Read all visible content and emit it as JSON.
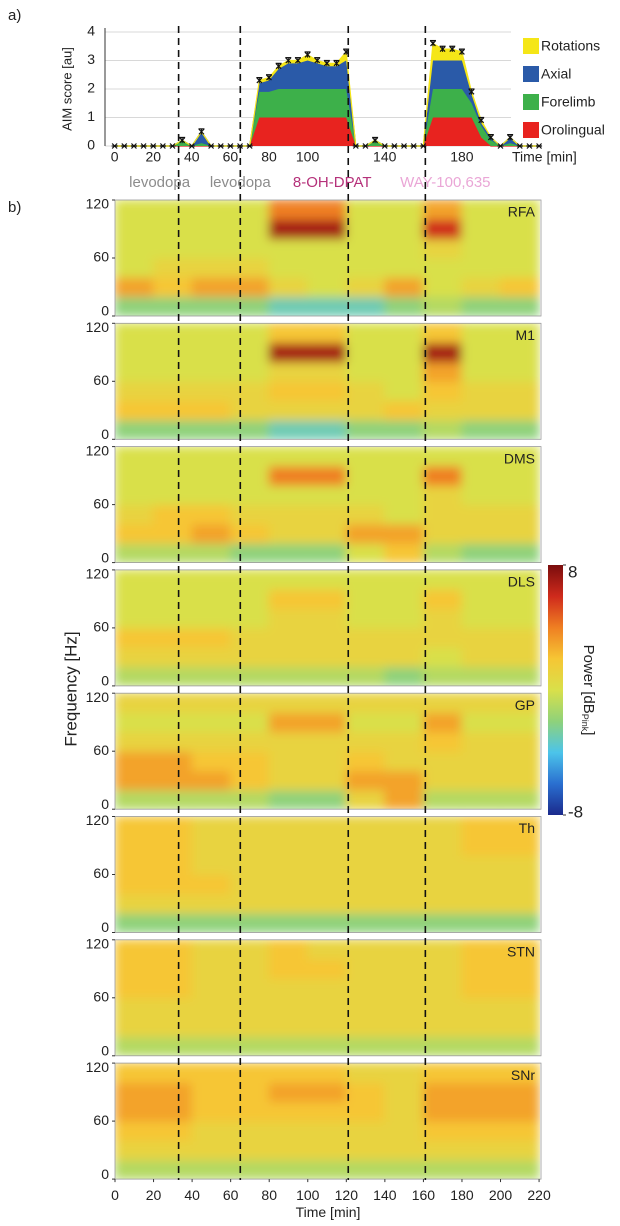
{
  "events": [
    {
      "x": 33,
      "label": "levodopa",
      "color": "#8c8c8c"
    },
    {
      "x": 65,
      "label": "levodopa",
      "color": "#8c8c8c"
    },
    {
      "x": 121,
      "label": "8-OH-DPAT",
      "color": "#b5317a"
    },
    {
      "x": 161,
      "label": "WAY-100,635",
      "color": "#eaa6d6"
    }
  ],
  "chart_data": [
    {
      "type": "area",
      "panel_label": "a)",
      "ylabel": "AIM score [au]",
      "xlabel": "Time [min]",
      "x": [
        0,
        5,
        10,
        15,
        20,
        25,
        30,
        35,
        40,
        45,
        50,
        55,
        60,
        65,
        70,
        75,
        80,
        85,
        90,
        95,
        100,
        105,
        110,
        115,
        120,
        125,
        130,
        135,
        140,
        145,
        150,
        155,
        160,
        165,
        170,
        175,
        180,
        185,
        190,
        195,
        200,
        205,
        210,
        215,
        220
      ],
      "xlim": [
        -5,
        221
      ],
      "xticks": [
        0,
        20,
        40,
        60,
        80,
        100,
        140,
        180
      ],
      "ylim": [
        0,
        4
      ],
      "yticks": [
        0,
        1,
        2,
        3,
        4
      ],
      "grid": true,
      "stacked": true,
      "legend": "upper right",
      "series": [
        {
          "name": "Orolingual",
          "color": "#e8231f",
          "values": [
            0,
            0,
            0,
            0,
            0,
            0,
            0,
            0,
            0,
            0,
            0,
            0,
            0,
            0,
            0,
            1,
            1,
            1,
            1,
            1,
            1,
            1,
            1,
            1,
            1,
            0,
            0,
            0,
            0,
            0,
            0,
            0,
            0,
            1,
            1,
            1,
            1,
            1,
            0.3,
            0,
            0,
            0,
            0,
            0,
            0
          ]
        },
        {
          "name": "Forelimb",
          "color": "#3db04a",
          "values": [
            0,
            0,
            0,
            0,
            0,
            0,
            0,
            0.2,
            0,
            0.1,
            0,
            0,
            0,
            0,
            0,
            0.9,
            0.9,
            1,
            1,
            1,
            1,
            1,
            1,
            1,
            1,
            0,
            0,
            0.2,
            0,
            0,
            0,
            0,
            0,
            1,
            1,
            1,
            1,
            0.5,
            0.4,
            0.2,
            0,
            0.1,
            0,
            0,
            0
          ]
        },
        {
          "name": "Axial",
          "color": "#2a5aa8",
          "values": [
            0,
            0,
            0,
            0,
            0,
            0,
            0,
            0,
            0,
            0.4,
            0,
            0,
            0,
            0,
            0,
            0.3,
            0.4,
            0.7,
            0.9,
            0.9,
            1,
            0.9,
            0.8,
            0.8,
            1,
            0,
            0,
            0,
            0,
            0,
            0,
            0,
            0,
            1,
            1,
            1,
            1,
            0.3,
            0.1,
            0.1,
            0,
            0.2,
            0,
            0,
            0
          ]
        },
        {
          "name": "Rotations",
          "color": "#f5e617",
          "values": [
            0,
            0,
            0,
            0,
            0,
            0,
            0,
            0,
            0,
            0,
            0,
            0,
            0,
            0,
            0,
            0.1,
            0.1,
            0.1,
            0.1,
            0.1,
            0.2,
            0.1,
            0.1,
            0.1,
            0.3,
            0,
            0,
            0,
            0,
            0,
            0,
            0,
            0,
            0.6,
            0.4,
            0.4,
            0.3,
            0.1,
            0.1,
            0,
            0,
            0,
            0,
            0,
            0
          ],
          "errors": [
            0,
            0,
            0,
            0,
            0,
            0,
            0,
            0.1,
            0,
            0.1,
            0,
            0,
            0,
            0,
            0,
            0.1,
            0.1,
            0.1,
            0.1,
            0.1,
            0.1,
            0.1,
            0.1,
            0.1,
            0.1,
            0,
            0,
            0.1,
            0,
            0,
            0,
            0,
            0,
            0.1,
            0.1,
            0.1,
            0.1,
            0.1,
            0.1,
            0.1,
            0,
            0.1,
            0,
            0,
            0
          ]
        }
      ]
    },
    {
      "type": "heatmap",
      "panel_label": "b)",
      "ylabel": "Frequency [Hz]",
      "xlabel": "Time [min]",
      "xlim": [
        0,
        221
      ],
      "xticks": [
        0,
        20,
        40,
        60,
        80,
        100,
        120,
        140,
        160,
        180,
        200,
        220
      ],
      "ylim": [
        0,
        120
      ],
      "yticks": [
        0,
        60,
        120
      ],
      "time_bins": [
        0,
        20,
        40,
        60,
        80,
        100,
        120,
        140,
        160,
        180,
        200,
        220
      ],
      "freq_bins": [
        0,
        20,
        40,
        60,
        80,
        100,
        120
      ],
      "colormap": [
        "#1b2a8c",
        "#2a6fd0",
        "#4cc4ea",
        "#8fd27a",
        "#d9e04a",
        "#f6c634",
        "#ef7f22",
        "#cf2a1c",
        "#7a0d0d"
      ],
      "clim": [
        -8,
        8
      ],
      "cticks": [
        8,
        -8
      ],
      "colorbar_label": [
        "Power [dB",
        "Pink",
        "]"
      ],
      "panels": [
        {
          "name": "RFA",
          "values": [
            [
              -2,
              -2,
              -2,
              -2,
              -3,
              -3,
              -3,
              -2,
              -1,
              -2,
              -2
            ],
            [
              3,
              2,
              3,
              3,
              1,
              0,
              1,
              3,
              0,
              1,
              2
            ],
            [
              0,
              1,
              1,
              1,
              0,
              0,
              0,
              0,
              0,
              0,
              0
            ],
            [
              0,
              0,
              0,
              0,
              0,
              0,
              0,
              0,
              1,
              0,
              0
            ],
            [
              0,
              0,
              0,
              0,
              7,
              7,
              0,
              0,
              6,
              0,
              0
            ],
            [
              0,
              0,
              0,
              0,
              4,
              4,
              0,
              0,
              3,
              0,
              0
            ]
          ]
        },
        {
          "name": "M1",
          "values": [
            [
              -2,
              -2,
              -2,
              -2,
              -3,
              -3,
              -2,
              -2,
              -1,
              -2,
              -2
            ],
            [
              2,
              2,
              2,
              1,
              1,
              1,
              1,
              2,
              1,
              1,
              1
            ],
            [
              1,
              1,
              1,
              1,
              2,
              2,
              1,
              0,
              2,
              1,
              1
            ],
            [
              0,
              0,
              0,
              0,
              1,
              1,
              0,
              0,
              3,
              0,
              0
            ],
            [
              0,
              0,
              0,
              0,
              7,
              7,
              0,
              0,
              7,
              0,
              0
            ],
            [
              0,
              0,
              0,
              0,
              2,
              2,
              0,
              0,
              2,
              0,
              0
            ]
          ]
        },
        {
          "name": "DMS",
          "values": [
            [
              -1,
              -1,
              -1,
              -2,
              -2,
              -2,
              0,
              2,
              -1,
              -2,
              -2
            ],
            [
              2,
              2,
              3,
              2,
              1,
              1,
              3,
              3,
              1,
              1,
              1
            ],
            [
              1,
              2,
              2,
              1,
              1,
              1,
              1,
              0,
              1,
              1,
              1
            ],
            [
              0,
              0,
              0,
              0,
              0,
              0,
              0,
              0,
              1,
              0,
              0
            ],
            [
              0,
              0,
              0,
              0,
              4,
              4,
              0,
              0,
              4,
              0,
              0
            ],
            [
              0,
              0,
              0,
              0,
              0,
              0,
              0,
              0,
              0,
              0,
              0
            ]
          ]
        },
        {
          "name": "DLS",
          "values": [
            [
              -1,
              -1,
              -1,
              -1,
              -1,
              -1,
              -1,
              -2,
              -1,
              -1,
              -1
            ],
            [
              1,
              1,
              1,
              1,
              1,
              1,
              1,
              1,
              0,
              1,
              1
            ],
            [
              2,
              2,
              2,
              1,
              1,
              1,
              1,
              1,
              1,
              1,
              1
            ],
            [
              0,
              0,
              0,
              0,
              1,
              1,
              0,
              0,
              1,
              0,
              0
            ],
            [
              0,
              0,
              0,
              0,
              2,
              2,
              0,
              0,
              2,
              0,
              0
            ],
            [
              0,
              0,
              0,
              0,
              0,
              0,
              0,
              0,
              0,
              0,
              0
            ]
          ]
        },
        {
          "name": "GP",
          "values": [
            [
              -1,
              -1,
              -1,
              -1,
              -2,
              -2,
              1,
              3,
              -1,
              -1,
              -1
            ],
            [
              3,
              3,
              3,
              2,
              1,
              1,
              3,
              3,
              1,
              1,
              1
            ],
            [
              3,
              3,
              2,
              2,
              1,
              1,
              2,
              1,
              1,
              1,
              1
            ],
            [
              1,
              1,
              1,
              1,
              1,
              1,
              1,
              1,
              2,
              1,
              1
            ],
            [
              0,
              0,
              0,
              0,
              3,
              3,
              0,
              0,
              3,
              0,
              0
            ],
            [
              1,
              1,
              1,
              1,
              1,
              1,
              1,
              1,
              1,
              1,
              1
            ]
          ]
        },
        {
          "name": "Th",
          "values": [
            [
              -2,
              -2,
              -2,
              -2,
              -2,
              -2,
              -2,
              -2,
              -2,
              -2,
              -2
            ],
            [
              1,
              1,
              1,
              1,
              1,
              1,
              1,
              1,
              1,
              1,
              1
            ],
            [
              2,
              2,
              2,
              1,
              1,
              1,
              1,
              1,
              1,
              1,
              1
            ],
            [
              2,
              2,
              1,
              1,
              1,
              1,
              1,
              1,
              1,
              1,
              1
            ],
            [
              2,
              2,
              1,
              1,
              1,
              1,
              1,
              1,
              1,
              2,
              2
            ],
            [
              2,
              2,
              1,
              1,
              1,
              1,
              1,
              1,
              1,
              2,
              2
            ]
          ]
        },
        {
          "name": "STN",
          "values": [
            [
              -1,
              -1,
              -1,
              -1,
              -1,
              -1,
              -1,
              -1,
              -1,
              -1,
              -1
            ],
            [
              1,
              1,
              1,
              1,
              1,
              1,
              1,
              1,
              1,
              1,
              1
            ],
            [
              1,
              1,
              1,
              1,
              1,
              1,
              1,
              1,
              1,
              1,
              1
            ],
            [
              2,
              2,
              1,
              1,
              1,
              1,
              1,
              1,
              1,
              2,
              2
            ],
            [
              2,
              2,
              1,
              1,
              2,
              2,
              1,
              1,
              1,
              2,
              2
            ],
            [
              2,
              2,
              1,
              1,
              2,
              1,
              1,
              1,
              1,
              2,
              2
            ]
          ]
        },
        {
          "name": "SNr",
          "values": [
            [
              -1,
              -1,
              -1,
              -1,
              -1,
              -1,
              -1,
              -1,
              -1,
              -1,
              -1
            ],
            [
              1,
              1,
              1,
              1,
              1,
              1,
              1,
              1,
              1,
              1,
              1
            ],
            [
              2,
              2,
              1,
              1,
              1,
              1,
              1,
              1,
              2,
              2,
              2
            ],
            [
              3,
              3,
              2,
              2,
              2,
              2,
              2,
              1,
              3,
              3,
              3
            ],
            [
              3,
              3,
              2,
              2,
              3,
              3,
              2,
              1,
              3,
              3,
              3
            ],
            [
              2,
              2,
              2,
              2,
              2,
              2,
              1,
              1,
              2,
              2,
              2
            ]
          ]
        }
      ]
    }
  ]
}
